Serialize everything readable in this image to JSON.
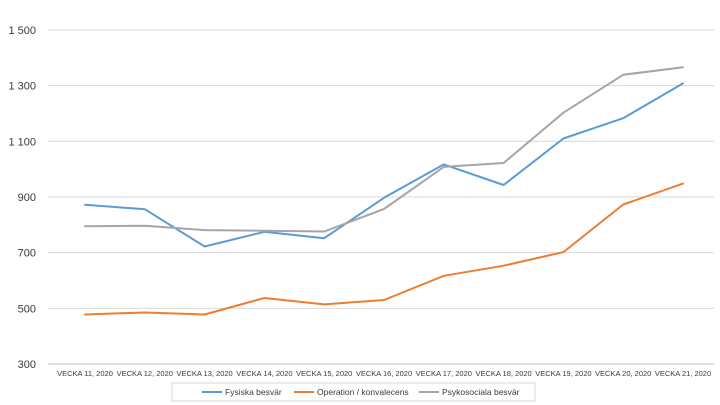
{
  "chart_data": {
    "type": "line",
    "title": "",
    "xlabel": "",
    "ylabel": "",
    "ylim": [
      300,
      1500
    ],
    "yticks": [
      300,
      500,
      700,
      900,
      1100,
      1300,
      1500
    ],
    "ytick_labels": [
      "300",
      "500",
      "700",
      "900",
      "1 100",
      "1 300",
      "1 500"
    ],
    "grid": true,
    "legend_position": "bottom",
    "categories": [
      "VECKA 11, 2020",
      "VECKA 12, 2020",
      "VECKA 13, 2020",
      "VECKA 14, 2020",
      "VECKA 15, 2020",
      "VECKA 16, 2020",
      "VECKA 17, 2020",
      "VECKA 18, 2020",
      "VECKA 19, 2020",
      "VECKA 20, 2020",
      "VECKA 21, 2020"
    ],
    "series": [
      {
        "name": "Fysiska besvär",
        "color": "#5b9bd5",
        "values": [
          872,
          856,
          722,
          775,
          752,
          897,
          1017,
          943,
          1110,
          1183,
          1308
        ]
      },
      {
        "name": "Operation / konvalecens",
        "color": "#ed7d31",
        "values": [
          478,
          485,
          478,
          537,
          514,
          530,
          617,
          653,
          702,
          873,
          948
        ]
      },
      {
        "name": "Psykosociala besvär",
        "color": "#a5a5a5",
        "values": [
          795,
          797,
          781,
          779,
          776,
          857,
          1008,
          1022,
          1203,
          1339,
          1366
        ]
      }
    ]
  }
}
